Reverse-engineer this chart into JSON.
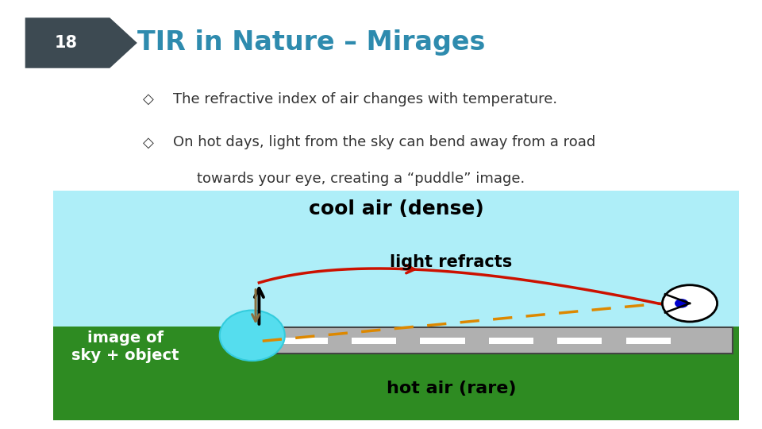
{
  "title": "TIR in Nature – Mirages",
  "title_color": "#2E8BAE",
  "slide_bg": "#FFFFFF",
  "page_number": "18",
  "page_badge_color": "#3D4A52",
  "bullet1": "The refractive index of air changes with temperature.",
  "bullet2_line1": "On hot days, light from the sky can bend away from a road",
  "bullet2_line2": "towards your eye, creating a “puddle” image.",
  "diamond": "◇",
  "diagram_bg": "#AEEEF8",
  "ground_color": "#2E8B22",
  "road_color": "#B0B0B0",
  "road_border": "#444444",
  "cool_air_label": "cool air (dense)",
  "hot_air_label": "hot air (rare)",
  "light_refracts_label": "light refracts",
  "image_of_label": "image of\nsky + object",
  "road_mark_color": "#FFFFFF",
  "light_curve_color": "#CC1100",
  "dashed_line_color": "#DD8800",
  "arrow_up_color": "#000000",
  "arrow_down_color": "#8B7040",
  "slide_left_bar_color": "#3A6B8A",
  "eye_color": "#FFFFFF",
  "pupil_color": "#0000CC"
}
